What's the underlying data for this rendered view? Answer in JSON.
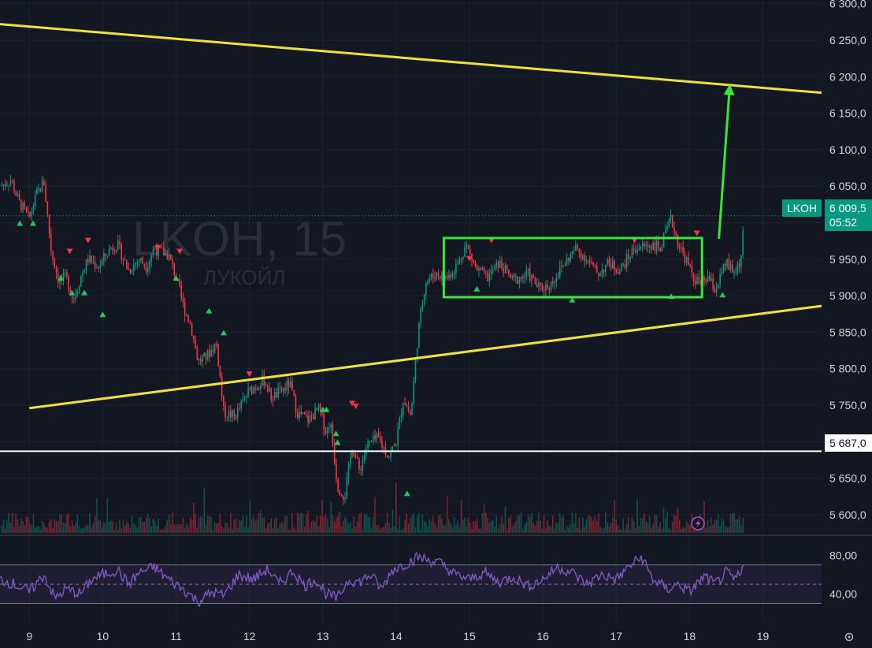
{
  "chart_data": {
    "type": "candlestick",
    "watermark": {
      "symbol": "LKOH, 15",
      "name": "ЛУКОЙЛ"
    },
    "price_axis": {
      "ticks": [
        5600,
        5650,
        5700,
        5750,
        5800,
        5850,
        5900,
        5950,
        6000,
        6050,
        6100,
        6150,
        6200,
        6250,
        6300
      ],
      "tick_labels": [
        "5 600,0",
        "5 650,0",
        "5 700,0",
        "5 750,0",
        "5 800,0",
        "5 850,0",
        "5 900,0",
        "5 950,0",
        "6 000,0",
        "6 050,0",
        "6 100,0",
        "6 150,0",
        "6 200,0",
        "6 250,0",
        "6 300,0"
      ],
      "range": [
        5573,
        6305
      ]
    },
    "time_axis": {
      "labels": [
        "9",
        "10",
        "11",
        "12",
        "13",
        "14",
        "15",
        "16",
        "17",
        "18",
        "19"
      ],
      "range": [
        8.6,
        19.8
      ]
    },
    "last_price": {
      "ticker": "LKOH",
      "value": 6009.5,
      "value_label": "6 009,5",
      "countdown": "05:52",
      "color": "#089981"
    },
    "horizontal_level": {
      "value": 5687,
      "label": "5 687,0",
      "color": "#ffffff"
    },
    "trendlines": [
      {
        "color": "#f0e040",
        "points": [
          [
            8.6,
            6272
          ],
          [
            19.8,
            6178
          ]
        ]
      },
      {
        "color": "#f0e040",
        "points": [
          [
            9.0,
            5746
          ],
          [
            19.8,
            5886
          ]
        ]
      }
    ],
    "range_box": {
      "color": "#39e639",
      "x": [
        14.65,
        18.17
      ],
      "y": [
        5898,
        5979
      ]
    },
    "projection_arrow": {
      "color": "#39e639",
      "from": [
        18.4,
        5978
      ],
      "to": [
        18.55,
        6190
      ]
    },
    "price_path": [
      [
        8.6,
        6050
      ],
      [
        8.75,
        6058
      ],
      [
        8.85,
        6030
      ],
      [
        9.0,
        6005
      ],
      [
        9.1,
        6040
      ],
      [
        9.2,
        6055
      ],
      [
        9.3,
        5960
      ],
      [
        9.4,
        5920
      ],
      [
        9.5,
        5925
      ],
      [
        9.6,
        5895
      ],
      [
        9.7,
        5925
      ],
      [
        9.8,
        5950
      ],
      [
        9.95,
        5940
      ],
      [
        10.1,
        5965
      ],
      [
        10.2,
        5970
      ],
      [
        10.35,
        5935
      ],
      [
        10.5,
        5950
      ],
      [
        10.6,
        5940
      ],
      [
        10.7,
        5965
      ],
      [
        10.9,
        5955
      ],
      [
        11.0,
        5925
      ],
      [
        11.1,
        5885
      ],
      [
        11.2,
        5860
      ],
      [
        11.3,
        5810
      ],
      [
        11.4,
        5815
      ],
      [
        11.55,
        5835
      ],
      [
        11.65,
        5740
      ],
      [
        11.8,
        5735
      ],
      [
        12.0,
        5770
      ],
      [
        12.2,
        5785
      ],
      [
        12.3,
        5760
      ],
      [
        12.45,
        5770
      ],
      [
        12.55,
        5780
      ],
      [
        12.65,
        5740
      ],
      [
        12.8,
        5730
      ],
      [
        12.95,
        5745
      ],
      [
        13.05,
        5712
      ],
      [
        13.1,
        5730
      ],
      [
        13.2,
        5640
      ],
      [
        13.3,
        5625
      ],
      [
        13.4,
        5695
      ],
      [
        13.5,
        5660
      ],
      [
        13.6,
        5695
      ],
      [
        13.75,
        5705
      ],
      [
        13.9,
        5680
      ],
      [
        14.0,
        5700
      ],
      [
        14.1,
        5760
      ],
      [
        14.2,
        5735
      ],
      [
        14.3,
        5850
      ],
      [
        14.4,
        5920
      ],
      [
        14.55,
        5930
      ],
      [
        14.7,
        5925
      ],
      [
        14.85,
        5945
      ],
      [
        14.95,
        5970
      ],
      [
        15.1,
        5935
      ],
      [
        15.25,
        5925
      ],
      [
        15.4,
        5945
      ],
      [
        15.6,
        5920
      ],
      [
        15.8,
        5930
      ],
      [
        15.95,
        5910
      ],
      [
        16.1,
        5915
      ],
      [
        16.3,
        5945
      ],
      [
        16.45,
        5965
      ],
      [
        16.6,
        5950
      ],
      [
        16.75,
        5930
      ],
      [
        16.9,
        5945
      ],
      [
        17.05,
        5935
      ],
      [
        17.25,
        5965
      ],
      [
        17.4,
        5968
      ],
      [
        17.5,
        5970
      ],
      [
        17.6,
        5965
      ],
      [
        17.75,
        6005
      ],
      [
        17.85,
        5970
      ],
      [
        17.95,
        5950
      ],
      [
        18.05,
        5925
      ],
      [
        18.15,
        5915
      ],
      [
        18.25,
        5925
      ],
      [
        18.35,
        5908
      ],
      [
        18.5,
        5945
      ],
      [
        18.6,
        5930
      ],
      [
        18.7,
        5950
      ],
      [
        18.75,
        6009.5
      ]
    ],
    "signal_markers": {
      "buy": [
        [
          8.87,
          6000
        ],
        [
          9.05,
          6000
        ],
        [
          9.43,
          5925
        ],
        [
          9.58,
          5905
        ],
        [
          9.75,
          5905
        ],
        [
          10.0,
          5875
        ],
        [
          11.0,
          5925
        ],
        [
          11.45,
          5880
        ],
        [
          11.65,
          5850
        ],
        [
          13.0,
          5745
        ],
        [
          13.05,
          5745
        ],
        [
          13.18,
          5712
        ],
        [
          13.2,
          5700
        ],
        [
          14.15,
          5630
        ],
        [
          15.1,
          5910
        ],
        [
          16.4,
          5895
        ],
        [
          17.75,
          5900
        ],
        [
          18.45,
          5902
        ]
      ],
      "sell": [
        [
          9.55,
          5960
        ],
        [
          9.8,
          5975
        ],
        [
          10.75,
          5965
        ],
        [
          11.05,
          5960
        ],
        [
          12.0,
          5792
        ],
        [
          13.4,
          5752
        ],
        [
          13.45,
          5748
        ],
        [
          15.0,
          5950
        ],
        [
          15.3,
          5975
        ],
        [
          17.25,
          5975
        ],
        [
          18.1,
          5985
        ]
      ]
    },
    "rsi": {
      "axis_labels": [
        "80,00",
        "40,00"
      ],
      "ticks": [
        80,
        40
      ],
      "range": [
        10,
        100
      ],
      "bands": [
        70,
        30
      ],
      "mid": 50,
      "line_color": "#7e57c2",
      "series": [
        [
          8.6,
          55
        ],
        [
          8.8,
          50
        ],
        [
          9.0,
          42
        ],
        [
          9.2,
          60
        ],
        [
          9.35,
          35
        ],
        [
          9.5,
          45
        ],
        [
          9.7,
          40
        ],
        [
          9.85,
          55
        ],
        [
          10.0,
          60
        ],
        [
          10.2,
          65
        ],
        [
          10.35,
          50
        ],
        [
          10.5,
          62
        ],
        [
          10.7,
          68
        ],
        [
          10.9,
          55
        ],
        [
          11.1,
          45
        ],
        [
          11.3,
          32
        ],
        [
          11.5,
          42
        ],
        [
          11.65,
          38
        ],
        [
          11.85,
          60
        ],
        [
          12.05,
          55
        ],
        [
          12.25,
          66
        ],
        [
          12.4,
          50
        ],
        [
          12.6,
          64
        ],
        [
          12.75,
          48
        ],
        [
          12.9,
          55
        ],
        [
          13.05,
          40
        ],
        [
          13.2,
          35
        ],
        [
          13.35,
          55
        ],
        [
          13.5,
          52
        ],
        [
          13.65,
          60
        ],
        [
          13.8,
          45
        ],
        [
          13.95,
          65
        ],
        [
          14.15,
          72
        ],
        [
          14.3,
          78
        ],
        [
          14.45,
          75
        ],
        [
          14.6,
          72
        ],
        [
          14.8,
          60
        ],
        [
          15.0,
          55
        ],
        [
          15.2,
          62
        ],
        [
          15.4,
          52
        ],
        [
          15.6,
          58
        ],
        [
          15.8,
          48
        ],
        [
          16.0,
          55
        ],
        [
          16.2,
          68
        ],
        [
          16.4,
          62
        ],
        [
          16.6,
          50
        ],
        [
          16.8,
          60
        ],
        [
          17.0,
          55
        ],
        [
          17.2,
          70
        ],
        [
          17.35,
          78
        ],
        [
          17.5,
          55
        ],
        [
          17.7,
          45
        ],
        [
          17.85,
          50
        ],
        [
          18.0,
          42
        ],
        [
          18.2,
          58
        ],
        [
          18.35,
          50
        ],
        [
          18.5,
          62
        ],
        [
          18.6,
          55
        ],
        [
          18.7,
          60
        ],
        [
          18.75,
          72
        ]
      ]
    }
  },
  "toolbar": {
    "alert_icon": "lightning-icon",
    "settings_icon": "gear-icon"
  },
  "colors": {
    "background": "#131722",
    "grid": "#1e222d",
    "up": "#089981",
    "down": "#f23645",
    "trendline": "#f0e040",
    "box": "#39e639",
    "rsi": "#7e57c2"
  }
}
